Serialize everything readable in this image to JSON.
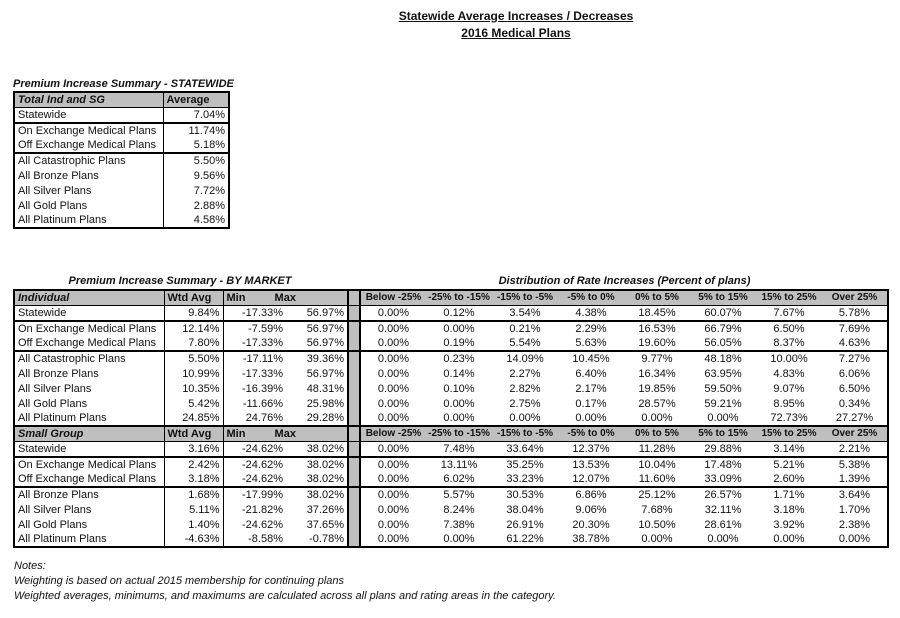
{
  "page_title": {
    "line1": "Statewide Average Increases / Decreases",
    "line2": "2016 Medical Plans"
  },
  "statewide_table": {
    "title": "Premium Increase Summary - STATEWIDE",
    "col_label": "Total Ind and SG",
    "col_value": "Average",
    "rows": [
      {
        "label": "Statewide",
        "value": "7.04%",
        "group_end": true
      },
      {
        "label": "On Exchange Medical Plans",
        "value": "11.74%",
        "group_end": false
      },
      {
        "label": "Off Exchange Medical Plans",
        "value": "5.18%",
        "group_end": true
      },
      {
        "label": "All Catastrophic Plans",
        "value": "5.50%",
        "group_end": false
      },
      {
        "label": "All Bronze Plans",
        "value": "9.56%",
        "group_end": false
      },
      {
        "label": "All Silver Plans",
        "value": "7.72%",
        "group_end": false
      },
      {
        "label": "All Gold Plans",
        "value": "2.88%",
        "group_end": false
      },
      {
        "label": "All Platinum Plans",
        "value": "4.58%",
        "group_end": false
      }
    ]
  },
  "market_table": {
    "left_title": "Premium Increase Summary - BY MARKET",
    "right_title": "Distribution of Rate Increases (Percent of plans)",
    "value_headers": {
      "wtd": "Wtd Avg",
      "min": "Min",
      "max": "Max"
    },
    "dist_headers": [
      "Below -25%",
      "-25% to -15%",
      "-15% to -5%",
      "-5% to 0%",
      "0% to 5%",
      "5% to 15%",
      "15% to 25%",
      "Over 25%"
    ],
    "sections": [
      {
        "label": "Individual",
        "rows": [
          {
            "label": "Statewide",
            "wtd": "9.84%",
            "min": "-17.33%",
            "max": "56.97%",
            "dist": [
              "0.00%",
              "0.12%",
              "3.54%",
              "4.38%",
              "18.45%",
              "60.07%",
              "7.67%",
              "5.78%"
            ],
            "group_end": true
          },
          {
            "label": "On Exchange Medical Plans",
            "wtd": "12.14%",
            "min": "-7.59%",
            "max": "56.97%",
            "dist": [
              "0.00%",
              "0.00%",
              "0.21%",
              "2.29%",
              "16.53%",
              "66.79%",
              "6.50%",
              "7.69%"
            ],
            "group_end": false
          },
          {
            "label": "Off Exchange Medical Plans",
            "wtd": "7.80%",
            "min": "-17.33%",
            "max": "56.97%",
            "dist": [
              "0.00%",
              "0.19%",
              "5.54%",
              "5.63%",
              "19.60%",
              "56.05%",
              "8.37%",
              "4.63%"
            ],
            "group_end": true
          },
          {
            "label": "All Catastrophic Plans",
            "wtd": "5.50%",
            "min": "-17.11%",
            "max": "39.36%",
            "dist": [
              "0.00%",
              "0.23%",
              "14.09%",
              "10.45%",
              "9.77%",
              "48.18%",
              "10.00%",
              "7.27%"
            ],
            "group_end": false
          },
          {
            "label": "All Bronze Plans",
            "wtd": "10.99%",
            "min": "-17.33%",
            "max": "56.97%",
            "dist": [
              "0.00%",
              "0.14%",
              "2.27%",
              "6.40%",
              "16.34%",
              "63.95%",
              "4.83%",
              "6.06%"
            ],
            "group_end": false
          },
          {
            "label": "All Silver Plans",
            "wtd": "10.35%",
            "min": "-16.39%",
            "max": "48.31%",
            "dist": [
              "0.00%",
              "0.10%",
              "2.82%",
              "2.17%",
              "19.85%",
              "59.50%",
              "9.07%",
              "6.50%"
            ],
            "group_end": false
          },
          {
            "label": "All Gold Plans",
            "wtd": "5.42%",
            "min": "-11.66%",
            "max": "25.98%",
            "dist": [
              "0.00%",
              "0.00%",
              "2.75%",
              "0.17%",
              "28.57%",
              "59.21%",
              "8.95%",
              "0.34%"
            ],
            "group_end": false
          },
          {
            "label": "All Platinum Plans",
            "wtd": "24.85%",
            "min": "24.76%",
            "max": "29.28%",
            "dist": [
              "0.00%",
              "0.00%",
              "0.00%",
              "0.00%",
              "0.00%",
              "0.00%",
              "72.73%",
              "27.27%"
            ],
            "group_end": true
          }
        ]
      },
      {
        "label": "Small Group",
        "rows": [
          {
            "label": "Statewide",
            "wtd": "3.16%",
            "min": "-24.62%",
            "max": "38.02%",
            "dist": [
              "0.00%",
              "7.48%",
              "33.64%",
              "12.37%",
              "11.28%",
              "29.88%",
              "3.14%",
              "2.21%"
            ],
            "group_end": true
          },
          {
            "label": "On Exchange Medical Plans",
            "wtd": "2.42%",
            "min": "-24.62%",
            "max": "38.02%",
            "dist": [
              "0.00%",
              "13.11%",
              "35.25%",
              "13.53%",
              "10.04%",
              "17.48%",
              "5.21%",
              "5.38%"
            ],
            "group_end": false
          },
          {
            "label": "Off Exchange Medical Plans",
            "wtd": "3.18%",
            "min": "-24.62%",
            "max": "38.02%",
            "dist": [
              "0.00%",
              "6.02%",
              "33.23%",
              "12.07%",
              "11.60%",
              "33.09%",
              "2.60%",
              "1.39%"
            ],
            "group_end": true
          },
          {
            "label": "All Bronze Plans",
            "wtd": "1.68%",
            "min": "-17.99%",
            "max": "38.02%",
            "dist": [
              "0.00%",
              "5.57%",
              "30.53%",
              "6.86%",
              "25.12%",
              "26.57%",
              "1.71%",
              "3.64%"
            ],
            "group_end": false
          },
          {
            "label": "All Silver Plans",
            "wtd": "5.11%",
            "min": "-21.82%",
            "max": "37.26%",
            "dist": [
              "0.00%",
              "8.24%",
              "38.04%",
              "9.06%",
              "7.68%",
              "32.11%",
              "3.18%",
              "1.70%"
            ],
            "group_end": false
          },
          {
            "label": "All Gold Plans",
            "wtd": "1.40%",
            "min": "-24.62%",
            "max": "37.65%",
            "dist": [
              "0.00%",
              "7.38%",
              "26.91%",
              "20.30%",
              "10.50%",
              "28.61%",
              "3.92%",
              "2.38%"
            ],
            "group_end": false
          },
          {
            "label": "All Platinum Plans",
            "wtd": "-4.63%",
            "min": "-8.58%",
            "max": "-0.78%",
            "dist": [
              "0.00%",
              "0.00%",
              "61.22%",
              "38.78%",
              "0.00%",
              "0.00%",
              "0.00%",
              "0.00%"
            ],
            "group_end": false
          }
        ]
      }
    ]
  },
  "notes": {
    "heading": "Notes:",
    "line1": "Weighting is based on actual 2015 membership for continuing plans",
    "line2": "Weighted averages, minimums, and maximums are calculated across all plans and rating areas in the category."
  },
  "colors": {
    "header_background": "#bfbfbf",
    "border": "#000000",
    "text": "#111111"
  }
}
